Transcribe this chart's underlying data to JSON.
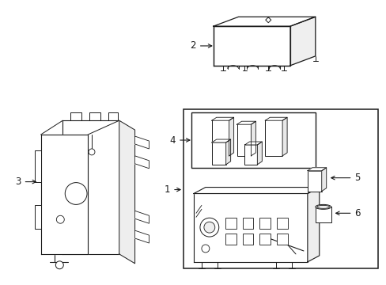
{
  "bg_color": "#ffffff",
  "line_color": "#1a1a1a",
  "fig_width": 4.89,
  "fig_height": 3.6,
  "dpi": 100,
  "label_fontsize": 8.5
}
